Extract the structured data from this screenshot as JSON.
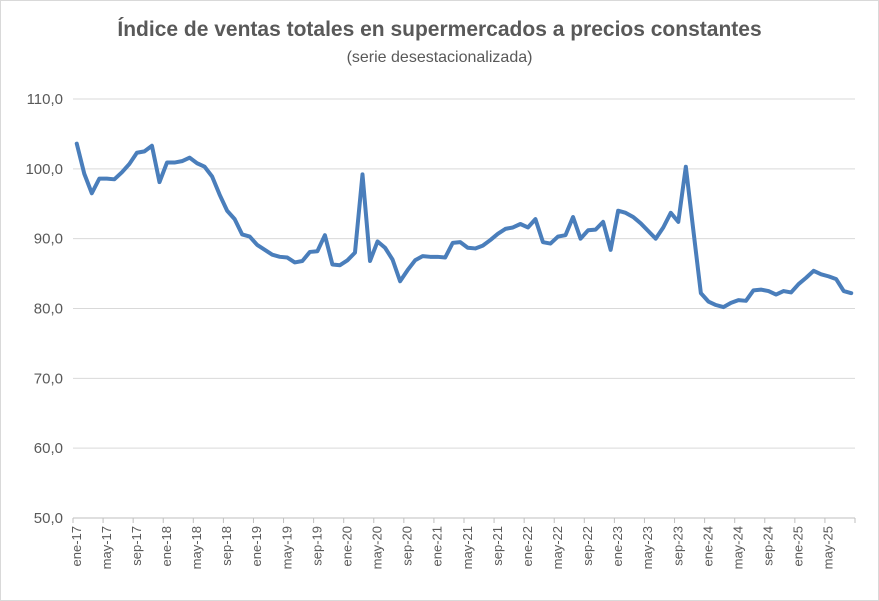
{
  "chart_data": {
    "type": "line",
    "title": "Índice de ventas totales en supermercados a precios constantes",
    "subtitle": "(serie desestacionalizada)",
    "xlabel": "",
    "ylabel": "",
    "ylim": [
      50,
      110
    ],
    "yticks": [
      50,
      60,
      70,
      80,
      90,
      100,
      110
    ],
    "ytick_labels": [
      "50,0",
      "60,0",
      "70,0",
      "80,0",
      "90,0",
      "100,0",
      "110,0"
    ],
    "xtick_labels": [
      {
        "label": "ene-17",
        "index": 0
      },
      {
        "label": "may-17",
        "index": 4
      },
      {
        "label": "sep-17",
        "index": 8
      },
      {
        "label": "ene-18",
        "index": 12
      },
      {
        "label": "may-18",
        "index": 16
      },
      {
        "label": "sep-18",
        "index": 20
      },
      {
        "label": "ene-19",
        "index": 24
      },
      {
        "label": "may-19",
        "index": 28
      },
      {
        "label": "sep-19",
        "index": 32
      },
      {
        "label": "ene-20",
        "index": 36
      },
      {
        "label": "may-20",
        "index": 40
      },
      {
        "label": "sep-20",
        "index": 44
      },
      {
        "label": "ene-21",
        "index": 48
      },
      {
        "label": "may-21",
        "index": 52
      },
      {
        "label": "sep-21",
        "index": 56
      },
      {
        "label": "ene-22",
        "index": 60
      },
      {
        "label": "may-22",
        "index": 64
      },
      {
        "label": "sep-22",
        "index": 68
      },
      {
        "label": "ene-23",
        "index": 72
      },
      {
        "label": "may-23",
        "index": 76
      },
      {
        "label": "sep-23",
        "index": 80
      },
      {
        "label": "ene-24",
        "index": 84
      },
      {
        "label": "may-24",
        "index": 88
      },
      {
        "label": "sep-24",
        "index": 92
      },
      {
        "label": "ene-25",
        "index": 96
      },
      {
        "label": "may-25",
        "index": 100
      }
    ],
    "grid": "horizontal",
    "legend": "none",
    "series": [
      {
        "color": "#4a7ebb",
        "values": [
          103.6,
          99.3,
          96.5,
          98.6,
          98.6,
          98.5,
          99.5,
          100.7,
          102.3,
          102.5,
          103.3,
          98.1,
          100.9,
          100.9,
          101.1,
          101.6,
          100.8,
          100.3,
          98.9,
          96.3,
          94.0,
          92.8,
          90.6,
          90.3,
          89.1,
          88.4,
          87.7,
          87.4,
          87.3,
          86.6,
          86.8,
          88.1,
          88.2,
          90.5,
          86.3,
          86.2,
          86.9,
          88.0,
          99.2,
          86.8,
          89.6,
          88.7,
          87.0,
          83.9,
          85.5,
          86.9,
          87.5,
          87.4,
          87.4,
          87.3,
          89.4,
          89.5,
          88.7,
          88.6,
          89.0,
          89.8,
          90.7,
          91.4,
          91.6,
          92.1,
          91.6,
          92.8,
          89.5,
          89.3,
          90.3,
          90.5,
          93.1,
          90.0,
          91.2,
          91.3,
          92.4,
          88.4,
          94.0,
          93.7,
          93.1,
          92.2,
          91.1,
          90.0,
          91.6,
          93.7,
          92.4,
          100.3,
          91.2,
          82.2,
          81.0,
          80.5,
          80.2,
          80.8,
          81.2,
          81.1,
          82.6,
          82.7,
          82.5,
          82.0,
          82.5,
          82.3,
          83.5,
          84.4,
          85.4,
          84.9,
          84.6,
          84.2,
          82.5,
          82.2
        ]
      }
    ]
  }
}
